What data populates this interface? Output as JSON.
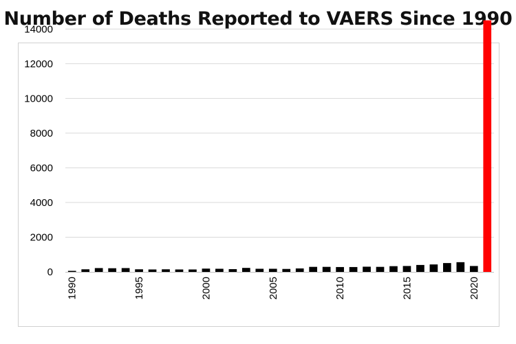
{
  "chart_data": {
    "type": "bar",
    "title": "Number of Deaths Reported to VAERS Since 1990",
    "xlabel": "",
    "ylabel": "",
    "ylim": [
      0,
      15000
    ],
    "yticks": [
      "0",
      "2000",
      "4000",
      "6000",
      "8000",
      "10000",
      "12000",
      "14000"
    ],
    "xticks": [
      "1990",
      "1995",
      "2000",
      "2005",
      "2010",
      "2015",
      "2020"
    ],
    "categories": [
      "1990",
      "1991",
      "1992",
      "1993",
      "1994",
      "1995",
      "1996",
      "1997",
      "1998",
      "1999",
      "2000",
      "2001",
      "2002",
      "2003",
      "2004",
      "2005",
      "2006",
      "2007",
      "2008",
      "2009",
      "2010",
      "2011",
      "2012",
      "2013",
      "2014",
      "2015",
      "2016",
      "2017",
      "2018",
      "2019",
      "2020",
      "2021"
    ],
    "values": [
      60,
      150,
      220,
      210,
      220,
      150,
      140,
      150,
      140,
      140,
      190,
      180,
      160,
      230,
      180,
      180,
      170,
      200,
      290,
      290,
      280,
      280,
      300,
      290,
      330,
      340,
      400,
      430,
      510,
      560,
      340,
      14500
    ],
    "colors": {
      "bar": "#000000",
      "highlight": "#ff0000",
      "grid": "#d9d9d9",
      "axis": "#bfbfbf"
    },
    "highlight_category": "2021",
    "grid": true
  }
}
